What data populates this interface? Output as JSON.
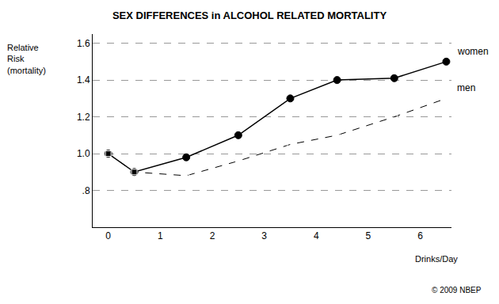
{
  "chart_data": {
    "type": "line",
    "title": "SEX DIFFERENCES in ALCOHOL RELATED MORTALITY",
    "x_label": "Drinks/Day",
    "y_label": "Relative Risk (mortality)",
    "annotations": [
      "© 2009 NBEP"
    ],
    "xlim": [
      -0.3,
      6.6
    ],
    "xticks": [
      0,
      1,
      2,
      3,
      4,
      5,
      6
    ],
    "ylim": [
      0.6,
      1.65
    ],
    "yticks": [
      {
        "value": 0.8,
        "label": ".8"
      },
      {
        "value": 1.0,
        "label": "1.0"
      },
      {
        "value": 1.2,
        "label": "1.2"
      },
      {
        "value": 1.4,
        "label": "1.4"
      },
      {
        "value": 1.6,
        "label": "1.6"
      }
    ],
    "grid": true,
    "series": [
      {
        "name": "women",
        "color": "#000000",
        "marker": "circle",
        "line_style": "solid",
        "x": [
          0,
          0.5,
          1.5,
          2.5,
          3.5,
          4.4,
          5.5,
          6.5
        ],
        "values": [
          1.0,
          0.9,
          0.98,
          1.1,
          1.3,
          1.4,
          1.41,
          1.5
        ]
      },
      {
        "name": "men",
        "color": "#000000",
        "marker": "square-open",
        "line_style": "dashed",
        "x": [
          0,
          0.5,
          1.5,
          2.5,
          3.5,
          4.4,
          5.5,
          6.5
        ],
        "values": [
          1.0,
          0.9,
          0.88,
          0.96,
          1.05,
          1.1,
          1.2,
          1.3
        ]
      }
    ]
  }
}
